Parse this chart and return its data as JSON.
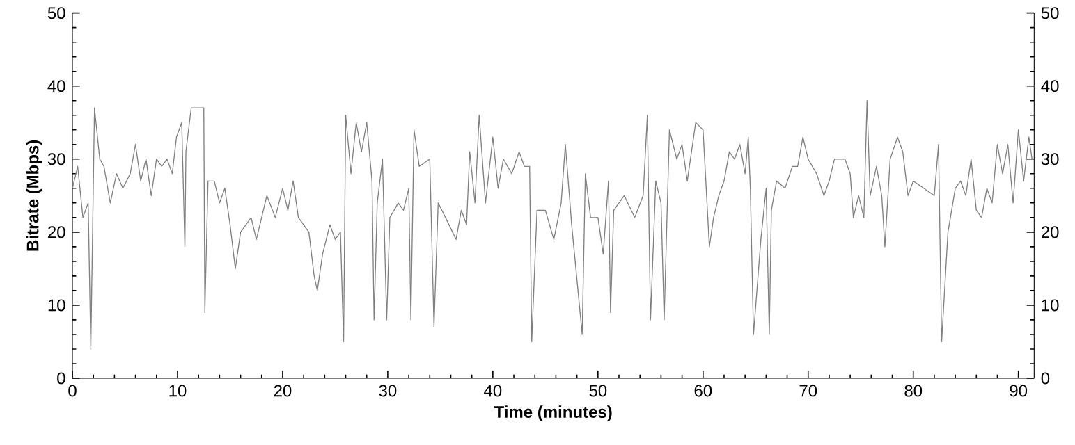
{
  "chart_data": {
    "type": "line",
    "xlabel": "Time (minutes)",
    "ylabel": "Bitrate (Mbps)",
    "xlim": [
      0,
      91.5
    ],
    "xticks": [
      0,
      10,
      20,
      30,
      40,
      50,
      60,
      70,
      80,
      90
    ],
    "ylim": [
      0,
      50
    ],
    "yticks": [
      0,
      10,
      20,
      30,
      40,
      50
    ],
    "y2lim": [
      0,
      50
    ],
    "y2ticks": [
      0,
      10,
      20,
      30,
      40,
      50
    ],
    "grid": false,
    "legend": false,
    "marker": "none",
    "line_style": "solid",
    "series": [
      {
        "color": "#808080",
        "x": [
          0,
          0.5,
          1.0,
          1.5,
          1.75,
          2.1,
          2.6,
          3.0,
          3.6,
          4.2,
          4.8,
          5.5,
          6.0,
          6.5,
          7.0,
          7.5,
          8.0,
          8.5,
          9.0,
          9.5,
          9.9,
          10.4,
          10.7,
          10.8,
          11.3,
          12.5,
          12.6,
          12.9,
          13.5,
          14.0,
          14.5,
          15.0,
          15.5,
          16.0,
          17.0,
          17.5,
          18.5,
          19.3,
          20.0,
          20.5,
          21.0,
          21.5,
          22.0,
          22.5,
          23.0,
          23.3,
          23.8,
          24.5,
          25.0,
          25.5,
          25.8,
          26.0,
          26.5,
          27.0,
          27.5,
          28.0,
          28.5,
          28.7,
          29.0,
          29.5,
          29.9,
          30.2,
          31.0,
          31.5,
          32.0,
          32.2,
          32.5,
          33.0,
          34.0,
          34.4,
          34.8,
          35.5,
          36.5,
          37.0,
          37.5,
          37.8,
          38.3,
          38.7,
          39.3,
          40.0,
          40.5,
          41.0,
          41.8,
          42.5,
          43.0,
          43.5,
          43.7,
          44.2,
          45.0,
          45.8,
          46.5,
          46.9,
          47.5,
          48.5,
          48.8,
          49.3,
          50.0,
          50.5,
          51.0,
          51.2,
          51.5,
          52.5,
          53.5,
          54.3,
          54.7,
          55.0,
          55.5,
          56.0,
          56.3,
          56.8,
          57.5,
          58.0,
          58.5,
          59.3,
          60.0,
          60.3,
          60.6,
          61.0,
          61.5,
          62.0,
          62.5,
          63.0,
          63.5,
          64.0,
          64.3,
          64.5,
          64.8,
          65.5,
          66.0,
          66.3,
          66.5,
          67.0,
          67.8,
          68.5,
          69.0,
          69.5,
          70.0,
          70.8,
          71.5,
          72.0,
          72.5,
          73.5,
          74.0,
          74.3,
          74.8,
          75.3,
          75.6,
          75.9,
          76.5,
          77.0,
          77.3,
          77.8,
          78.5,
          79.0,
          79.5,
          80.0,
          81.0,
          82.0,
          82.4,
          82.7,
          83.3,
          84.0,
          84.5,
          85.0,
          85.5,
          86.0,
          86.5,
          87.0,
          87.5,
          88.0,
          88.5,
          89.0,
          89.5,
          90.0,
          90.5,
          91.0,
          91.3
        ],
        "values": [
          26,
          29,
          22,
          24,
          4,
          37,
          30,
          29,
          24,
          28,
          26,
          28,
          32,
          27,
          30,
          25,
          30,
          29,
          30,
          28,
          33,
          35,
          18,
          31,
          37,
          37,
          9,
          27,
          27,
          24,
          26,
          21,
          15,
          20,
          22,
          19,
          25,
          22,
          26,
          23,
          27,
          22,
          21,
          20,
          14,
          12,
          17,
          21,
          19,
          20,
          5,
          36,
          28,
          35,
          31,
          35,
          27,
          8,
          24,
          30,
          8,
          22,
          24,
          23,
          26,
          8,
          34,
          29,
          30,
          7,
          24,
          22,
          19,
          23,
          21,
          31,
          24,
          36,
          24,
          33,
          26,
          30,
          28,
          31,
          29,
          29,
          5,
          23,
          23,
          19,
          24,
          32,
          21,
          6,
          28,
          22,
          22,
          17,
          27,
          9,
          23,
          25,
          22,
          25,
          36,
          8,
          27,
          24,
          8,
          34,
          30,
          32,
          27,
          35,
          34,
          26,
          18,
          22,
          25,
          27,
          31,
          30,
          32,
          28,
          33,
          26,
          6,
          19,
          26,
          6,
          23,
          27,
          26,
          29,
          29,
          33,
          30,
          28,
          25,
          27,
          30,
          30,
          28,
          22,
          25,
          22,
          38,
          25,
          29,
          25,
          18,
          30,
          33,
          31,
          25,
          27,
          26,
          25,
          32,
          5,
          20,
          26,
          27,
          25,
          30,
          23,
          22,
          26,
          24,
          32,
          28,
          32,
          24,
          34,
          27,
          33,
          30
        ]
      }
    ]
  }
}
